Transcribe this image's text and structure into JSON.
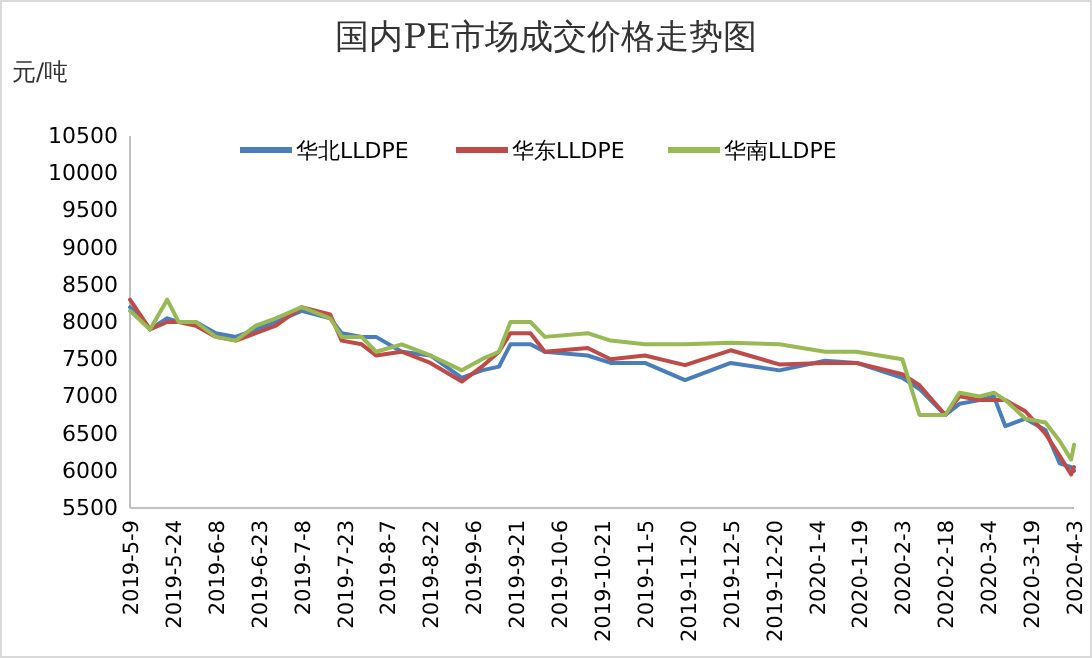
{
  "chart_data": {
    "type": "line",
    "title": "国内PE市场成交价格走势图",
    "ylabel": "元/吨",
    "legend": "top",
    "grid": false,
    "marker": "none",
    "line_style": "solid",
    "x": [
      "2019-05-09",
      "2019-05-16",
      "2019-05-22",
      "2019-05-26",
      "2019-06-01",
      "2019-06-08",
      "2019-06-15",
      "2019-06-22",
      "2019-06-29",
      "2019-07-08",
      "2019-07-18",
      "2019-07-22",
      "2019-07-29",
      "2019-08-03",
      "2019-08-12",
      "2019-08-22",
      "2019-09-02",
      "2019-09-09",
      "2019-09-15",
      "2019-09-19",
      "2019-09-26",
      "2019-10-01",
      "2019-10-16",
      "2019-10-24",
      "2019-11-05",
      "2019-11-19",
      "2019-12-05",
      "2019-12-22",
      "2020-01-07",
      "2020-01-18",
      "2020-02-03",
      "2020-02-09",
      "2020-02-18",
      "2020-02-23",
      "2020-03-01",
      "2020-03-06",
      "2020-03-10",
      "2020-03-17",
      "2020-03-24",
      "2020-03-29",
      "2020-04-02",
      "2020-04-03"
    ],
    "series": [
      {
        "name": "华北LLDPE",
        "color": "#4a7ebb",
        "values": [
          8200,
          7900,
          8050,
          8000,
          8000,
          7850,
          7800,
          7900,
          8000,
          8150,
          8050,
          7850,
          7800,
          7800,
          7600,
          7550,
          7250,
          7350,
          7400,
          7700,
          7700,
          7600,
          7550,
          7450,
          7450,
          7220,
          7450,
          7350,
          7480,
          7450,
          7250,
          7100,
          6750,
          6900,
          6950,
          7000,
          6600,
          6700,
          6550,
          6100,
          6050,
          6000
        ]
      },
      {
        "name": "华东LLDPE",
        "color": "#be4b48",
        "values": [
          8300,
          7900,
          8000,
          8000,
          7950,
          7800,
          7750,
          7850,
          7950,
          8200,
          8100,
          7750,
          7700,
          7550,
          7600,
          7450,
          7200,
          7400,
          7600,
          7850,
          7850,
          7600,
          7650,
          7500,
          7550,
          7420,
          7620,
          7430,
          7450,
          7450,
          7300,
          7150,
          6750,
          7000,
          6950,
          6950,
          6950,
          6800,
          6500,
          6200,
          5950,
          6050
        ]
      },
      {
        "name": "华南LLDPE",
        "color": "#98b954",
        "values": [
          8150,
          7900,
          8300,
          8000,
          8000,
          7800,
          7750,
          7950,
          8050,
          8200,
          8050,
          7800,
          7800,
          7600,
          7700,
          7550,
          7350,
          7500,
          7600,
          8000,
          8000,
          7800,
          7850,
          7750,
          7700,
          7700,
          7720,
          7700,
          7600,
          7600,
          7500,
          6750,
          6750,
          7050,
          7000,
          7050,
          6950,
          6700,
          6650,
          6400,
          6150,
          6350
        ]
      }
    ],
    "ylim": [
      5500,
      10500
    ],
    "yticks": [
      5500,
      6000,
      6500,
      7000,
      7500,
      8000,
      8500,
      9000,
      9500,
      10000,
      10500
    ],
    "xlim": [
      "2019-05-09",
      "2020-04-03"
    ],
    "xticks": [
      {
        "value": "2019-05-09",
        "label": "2019-5-9"
      },
      {
        "value": "2019-05-24",
        "label": "2019-5-24"
      },
      {
        "value": "2019-06-08",
        "label": "2019-6-8"
      },
      {
        "value": "2019-06-23",
        "label": "2019-6-23"
      },
      {
        "value": "2019-07-08",
        "label": "2019-7-8"
      },
      {
        "value": "2019-07-23",
        "label": "2019-7-23"
      },
      {
        "value": "2019-08-07",
        "label": "2019-8-7"
      },
      {
        "value": "2019-08-22",
        "label": "2019-8-22"
      },
      {
        "value": "2019-09-06",
        "label": "2019-9-6"
      },
      {
        "value": "2019-09-21",
        "label": "2019-9-21"
      },
      {
        "value": "2019-10-06",
        "label": "2019-10-6"
      },
      {
        "value": "2019-10-21",
        "label": "2019-10-21"
      },
      {
        "value": "2019-11-05",
        "label": "2019-11-5"
      },
      {
        "value": "2019-11-20",
        "label": "2019-11-20"
      },
      {
        "value": "2019-12-05",
        "label": "2019-12-5"
      },
      {
        "value": "2019-12-20",
        "label": "2019-12-20"
      },
      {
        "value": "2020-01-04",
        "label": "2020-1-4"
      },
      {
        "value": "2020-01-19",
        "label": "2020-1-19"
      },
      {
        "value": "2020-02-03",
        "label": "2020-2-3"
      },
      {
        "value": "2020-02-18",
        "label": "2020-2-18"
      },
      {
        "value": "2020-03-04",
        "label": "2020-3-4"
      },
      {
        "value": "2020-03-19",
        "label": "2020-3-19"
      },
      {
        "value": "2020-04-03",
        "label": "2020-4-3"
      }
    ]
  }
}
